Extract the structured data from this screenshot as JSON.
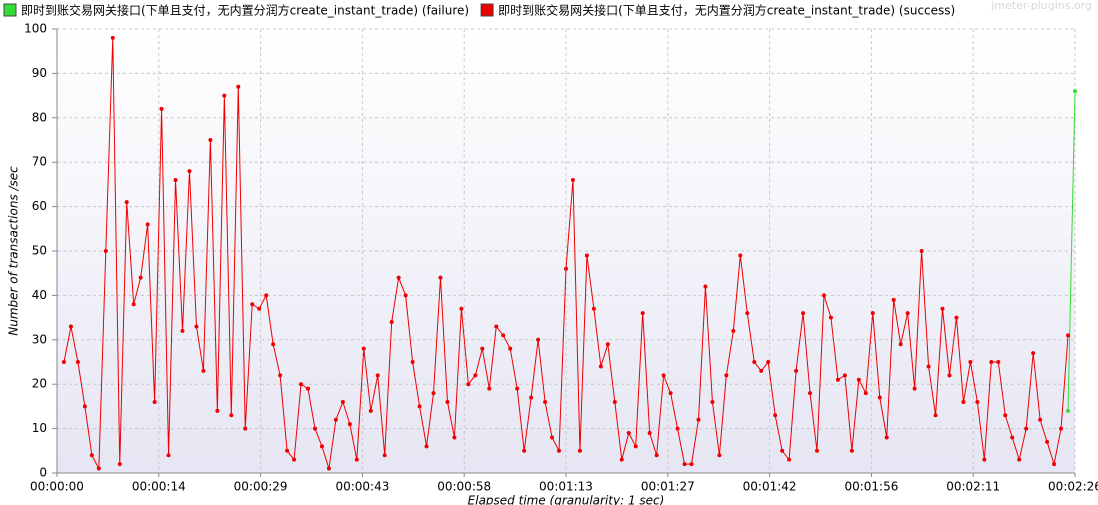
{
  "chart_data": {
    "type": "line",
    "watermark": "jmeter-plugins.org",
    "y_label": "Number of transactions /sec",
    "x_label": "Elapsed time (granularity: 1 sec)",
    "xlim": [
      0,
      146
    ],
    "ylim": [
      0,
      100
    ],
    "yticks": [
      0,
      10,
      20,
      30,
      40,
      50,
      60,
      70,
      80,
      90,
      100
    ],
    "xticks": [
      {
        "value": 0,
        "label": "00:00:00"
      },
      {
        "value": 14.6,
        "label": "00:00:14"
      },
      {
        "value": 29.2,
        "label": "00:00:29"
      },
      {
        "value": 43.8,
        "label": "00:00:43"
      },
      {
        "value": 58.4,
        "label": "00:00:58"
      },
      {
        "value": 73,
        "label": "00:01:13"
      },
      {
        "value": 87.6,
        "label": "00:01:27"
      },
      {
        "value": 102.2,
        "label": "00:01:42"
      },
      {
        "value": 116.8,
        "label": "00:01:56"
      },
      {
        "value": 131.4,
        "label": "00:02:11"
      },
      {
        "value": 146,
        "label": "00:02:26"
      }
    ],
    "grid": true,
    "series": [
      {
        "name": "即时到账交易网关接口(下单且支付，无内置分润方create_instant_trade) (failure)",
        "color": "#33dd33",
        "x": [
          145,
          146
        ],
        "values": [
          14,
          86
        ]
      },
      {
        "name": "即时到账交易网关接口(下单且支付，无内置分润方create_instant_trade) (success)",
        "color": "#ee0000",
        "x": [
          1,
          2,
          3,
          4,
          5,
          6,
          7,
          8,
          9,
          10,
          11,
          12,
          13,
          14,
          15,
          16,
          17,
          18,
          19,
          20,
          21,
          22,
          23,
          24,
          25,
          26,
          27,
          28,
          29,
          30,
          31,
          32,
          33,
          34,
          35,
          36,
          37,
          38,
          39,
          40,
          41,
          42,
          43,
          44,
          45,
          46,
          47,
          48,
          49,
          50,
          51,
          52,
          53,
          54,
          55,
          56,
          57,
          58,
          59,
          60,
          61,
          62,
          63,
          64,
          65,
          66,
          67,
          68,
          69,
          70,
          71,
          72,
          73,
          74,
          75,
          76,
          77,
          78,
          79,
          80,
          81,
          82,
          83,
          84,
          85,
          86,
          87,
          88,
          89,
          90,
          91,
          92,
          93,
          94,
          95,
          96,
          97,
          98,
          99,
          100,
          101,
          102,
          103,
          104,
          105,
          106,
          107,
          108,
          109,
          110,
          111,
          112,
          113,
          114,
          115,
          116,
          117,
          118,
          119,
          120,
          121,
          122,
          123,
          124,
          125,
          126,
          127,
          128,
          129,
          130,
          131,
          132,
          133,
          134,
          135,
          136,
          137,
          138,
          139,
          140,
          141,
          142,
          143,
          144,
          145
        ],
        "values": [
          25,
          33,
          25,
          15,
          4,
          1,
          50,
          98,
          2,
          61,
          38,
          44,
          56,
          16,
          82,
          4,
          66,
          32,
          68,
          33,
          23,
          75,
          14,
          85,
          13,
          87,
          10,
          38,
          37,
          40,
          29,
          22,
          5,
          3,
          20,
          19,
          10,
          6,
          1,
          12,
          16,
          11,
          3,
          28,
          14,
          22,
          4,
          34,
          44,
          40,
          25,
          15,
          6,
          18,
          44,
          16,
          8,
          37,
          20,
          22,
          28,
          19,
          33,
          31,
          28,
          19,
          5,
          17,
          30,
          16,
          8,
          5,
          46,
          66,
          5,
          49,
          37,
          24,
          29,
          16,
          3,
          9,
          6,
          36,
          9,
          4,
          22,
          18,
          10,
          2,
          2,
          12,
          42,
          16,
          4,
          22,
          32,
          49,
          36,
          25,
          23,
          25,
          13,
          5,
          3,
          23,
          36,
          18,
          5,
          40,
          35,
          21,
          22,
          5,
          21,
          18,
          36,
          17,
          8,
          39,
          29,
          36,
          19,
          50,
          24,
          13,
          37,
          22,
          35,
          16,
          25,
          16,
          3,
          25,
          25,
          13,
          8,
          3,
          10,
          27,
          12,
          7,
          2,
          10,
          31
        ]
      }
    ]
  }
}
